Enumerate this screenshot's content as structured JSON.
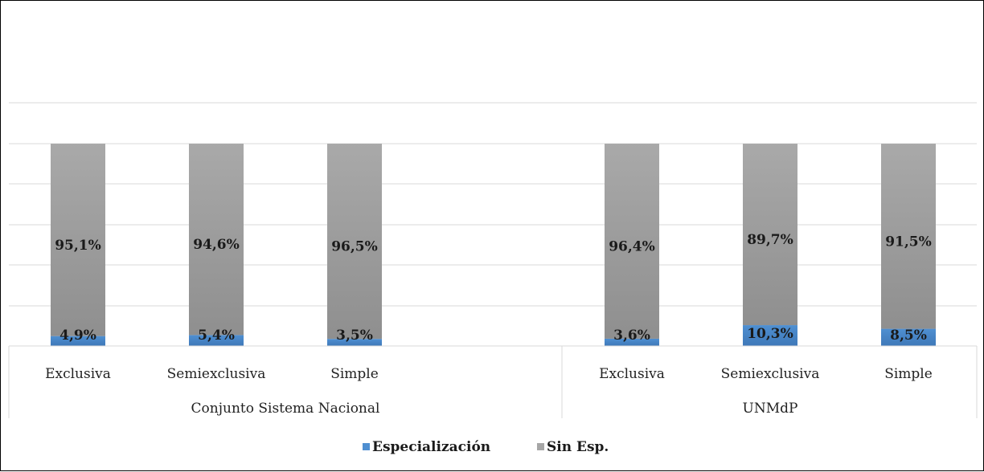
{
  "chart_data": {
    "type": "bar",
    "stacked": true,
    "percent": true,
    "groups": [
      {
        "label": "Conjunto Sistema Nacional",
        "categories": [
          "Exclusiva",
          "Semiexclusiva",
          "Simple"
        ]
      },
      {
        "label": "UNMdP",
        "categories": [
          "Exclusiva",
          "Semiexclusiva",
          "Simple"
        ]
      }
    ],
    "categories": [
      "Exclusiva",
      "Semiexclusiva",
      "Simple",
      "Exclusiva",
      "Semiexclusiva",
      "Simple"
    ],
    "series": [
      {
        "name": "Especialización",
        "color": "#4f8fd1",
        "values": [
          4.9,
          5.4,
          3.5,
          3.6,
          10.3,
          8.5
        ],
        "labels": [
          "4,9%",
          "5,4%",
          "3,5%",
          "3,6%",
          "10,3%",
          "8,5%"
        ]
      },
      {
        "name": "Sin Esp.",
        "color": "#a6a6a6",
        "values": [
          95.1,
          94.6,
          96.5,
          96.4,
          89.7,
          91.5
        ],
        "labels": [
          "95,1%",
          "94,6%",
          "96,5%",
          "96,4%",
          "89,7%",
          "91,5%"
        ]
      }
    ],
    "ylim": [
      0,
      100
    ],
    "grid": true,
    "legend": "bottom"
  }
}
